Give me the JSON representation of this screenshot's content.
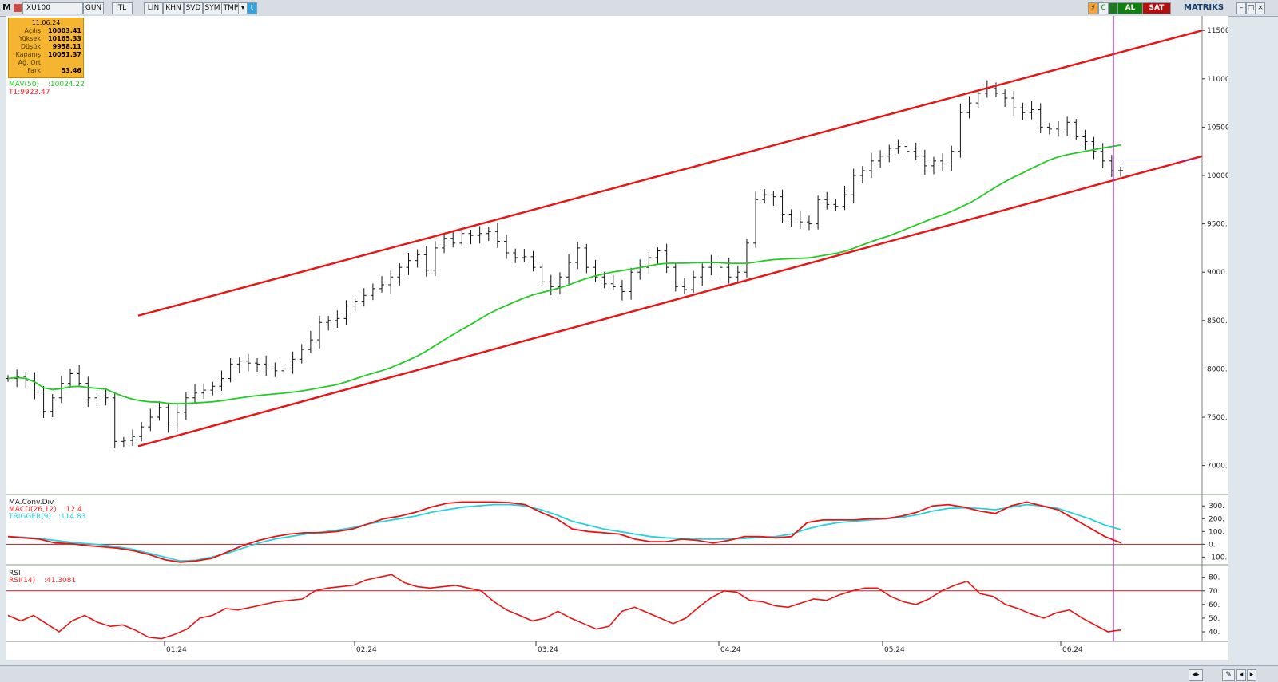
{
  "toolbar": {
    "app_letter": "M",
    "symbol": "XU100",
    "buttons": [
      "GUN",
      "TL",
      "LIN",
      "KHN",
      "SVD",
      "SYM",
      "TMP"
    ],
    "al_label": "AL",
    "sat_label": "SAT",
    "brand": "MATRIKS"
  },
  "info_box": {
    "date": "11.06.24",
    "rows": [
      {
        "label": "Açılış",
        "value": "10003.41"
      },
      {
        "label": "Yüksek",
        "value": "10165.33"
      },
      {
        "label": "Düşük",
        "value": "9958.11"
      },
      {
        "label": "Kapanış",
        "value": "10051.37"
      },
      {
        "label": "Ağ. Ort",
        "value": ""
      },
      {
        "label": "Fark",
        "value": "53.46"
      }
    ]
  },
  "legends": {
    "mav": {
      "label": "MAV(50)",
      "value": ":10024.22",
      "color": "#22cc22"
    },
    "t1": {
      "label": "T1:9923.47",
      "color": "#ff2222"
    },
    "macd_title": "MA.Conv.Div",
    "macd": {
      "label": "MACD(26,12)",
      "value": ":12.4",
      "color": "#ff2222"
    },
    "trigger": {
      "label": "TRIGGER(9)",
      "value": ":114.83",
      "color": "#22d4e0"
    },
    "rsi_title": "RSI",
    "rsi": {
      "label": "RSI(14)",
      "value": ":41.3081",
      "color": "#ff2222"
    }
  },
  "chart_data": [
    {
      "type": "ohlc",
      "title": "XU100",
      "x_labels": [
        "01.24",
        "02.24",
        "03.24",
        "04.24",
        "05.24",
        "06.24"
      ],
      "y_ticks": [
        7000,
        7500,
        8000,
        8500,
        9000,
        9500,
        10000,
        10500,
        11000,
        11500
      ],
      "ylim": [
        6700,
        11650
      ],
      "close_path": [
        7900,
        7920,
        7880,
        7760,
        7560,
        7700,
        7850,
        7950,
        7850,
        7700,
        7720,
        7700,
        7250,
        7260,
        7300,
        7400,
        7500,
        7600,
        7430,
        7550,
        7700,
        7750,
        7780,
        7820,
        7900,
        8050,
        8080,
        8060,
        8050,
        8000,
        7980,
        8000,
        8100,
        8200,
        8300,
        8480,
        8500,
        8520,
        8650,
        8700,
        8760,
        8830,
        8870,
        8950,
        9050,
        9120,
        9180,
        9020,
        9250,
        9350,
        9300,
        9400,
        9380,
        9400,
        9420,
        9320,
        9200,
        9150,
        9160,
        9050,
        8900,
        8850,
        8950,
        9100,
        9250,
        9050,
        8950,
        8880,
        8850,
        8800,
        9000,
        9050,
        9150,
        9220,
        9050,
        8850,
        8820,
        8950,
        9050,
        9100,
        9050,
        8950,
        9000,
        9300,
        9750,
        9800,
        9780,
        9600,
        9550,
        9520,
        9500,
        9750,
        9700,
        9680,
        9800,
        10000,
        10050,
        10150,
        10200,
        10280,
        10300,
        10250,
        10200,
        10100,
        10150,
        10120,
        10250,
        10650,
        10750,
        10850,
        10900,
        10850,
        10800,
        10700,
        10650,
        10680,
        10500,
        10480,
        10450,
        10550,
        10400,
        10350,
        10250,
        10150,
        10050,
        10051
      ],
      "channel": {
        "upper": [
          [
            8550,
            11500
          ]
        ],
        "lower": [
          [
            7200,
            10200
          ]
        ]
      },
      "mav50_last": 10024.22,
      "last_close": 10051.37
    },
    {
      "type": "line",
      "title": "MA.Conv.Div",
      "y_ticks": [
        -100,
        0,
        100,
        200,
        300
      ],
      "ylim": [
        -160,
        370
      ],
      "series": [
        {
          "name": "MACD(26,12)",
          "values": [
            60,
            50,
            40,
            10,
            5,
            -10,
            -20,
            -30,
            -50,
            -80,
            -120,
            -140,
            -130,
            -110,
            -60,
            -10,
            30,
            60,
            80,
            90,
            90,
            100,
            120,
            160,
            200,
            220,
            250,
            290,
            320,
            330,
            330,
            330,
            325,
            310,
            250,
            200,
            120,
            100,
            90,
            80,
            40,
            20,
            20,
            40,
            30,
            10,
            30,
            60,
            60,
            50,
            60,
            170,
            190,
            190,
            190,
            200,
            200,
            220,
            250,
            300,
            310,
            290,
            260,
            240,
            300,
            330,
            300,
            270,
            200,
            130,
            60,
            12
          ]
        },
        {
          "name": "TRIGGER(9)",
          "values": [
            60,
            55,
            45,
            30,
            15,
            5,
            -5,
            -20,
            -40,
            -70,
            -100,
            -130,
            -125,
            -100,
            -70,
            -30,
            10,
            40,
            60,
            80,
            95,
            110,
            130,
            160,
            180,
            200,
            220,
            250,
            270,
            290,
            300,
            310,
            310,
            300,
            270,
            230,
            180,
            150,
            120,
            100,
            80,
            60,
            50,
            45,
            40,
            40,
            40,
            45,
            55,
            60,
            80,
            120,
            150,
            170,
            180,
            190,
            200,
            210,
            230,
            260,
            280,
            285,
            280,
            270,
            290,
            310,
            300,
            280,
            240,
            200,
            150,
            114.83
          ]
        }
      ]
    },
    {
      "type": "line",
      "title": "RSI",
      "y_ticks": [
        40,
        50,
        60,
        70,
        80
      ],
      "ylim": [
        33,
        88
      ],
      "reference_line": 70,
      "series": [
        {
          "name": "RSI(14)",
          "values": [
            52,
            48,
            52,
            46,
            40,
            48,
            52,
            47,
            44,
            45,
            41,
            36,
            35,
            38,
            42,
            50,
            52,
            57,
            56,
            58,
            60,
            62,
            63,
            64,
            70,
            72,
            73,
            74,
            78,
            80,
            82,
            76,
            73,
            72,
            73,
            74,
            72,
            70,
            62,
            56,
            52,
            48,
            50,
            55,
            50,
            46,
            42,
            44,
            55,
            58,
            54,
            50,
            46,
            50,
            58,
            65,
            70,
            69,
            63,
            62,
            59,
            58,
            61,
            64,
            63,
            67,
            70,
            72,
            72,
            66,
            62,
            60,
            64,
            70,
            74,
            77,
            68,
            66,
            60,
            57,
            53,
            50,
            54,
            56,
            50,
            45,
            40,
            41.3
          ]
        }
      ]
    }
  ]
}
